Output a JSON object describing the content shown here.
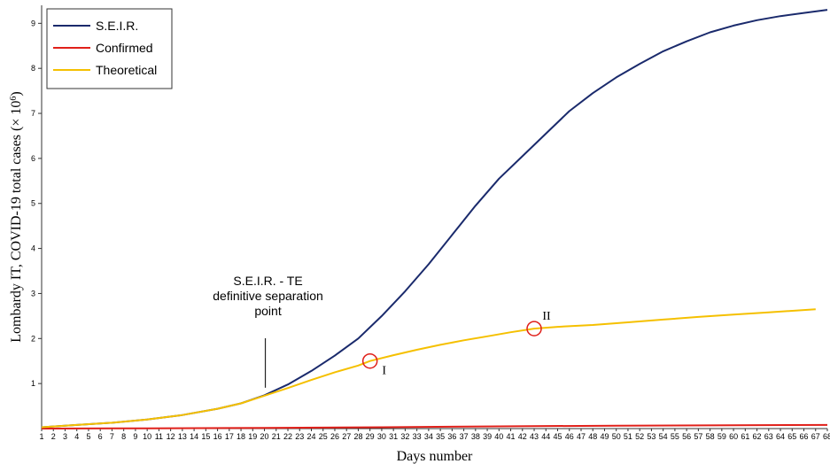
{
  "chart_data": {
    "type": "line",
    "xlabel": "Days number",
    "ylabel_prefix": "Lombardy IT, COVID-19 total cases (× 10",
    "ylabel_exp": "6",
    "ylabel_suffix": ")",
    "x": [
      1,
      2,
      3,
      4,
      5,
      6,
      7,
      8,
      9,
      10,
      11,
      12,
      13,
      14,
      15,
      16,
      17,
      18,
      19,
      20,
      21,
      22,
      23,
      24,
      25,
      26,
      27,
      28,
      29,
      30,
      31,
      32,
      33,
      34,
      35,
      36,
      37,
      38,
      39,
      40,
      41,
      42,
      43,
      44,
      45,
      46,
      47,
      48,
      49,
      50,
      51,
      52,
      53,
      54,
      55,
      56,
      57,
      58,
      59,
      60,
      61,
      62,
      63,
      64,
      65,
      66,
      67,
      68
    ],
    "xlim": [
      1,
      68
    ],
    "ylim": [
      0,
      9.4
    ],
    "yticks": [
      1,
      2,
      3,
      4,
      5,
      6,
      7,
      8,
      9
    ],
    "grid": false,
    "legend_position": "top-left",
    "series": [
      {
        "name": "S.E.I.R.",
        "color": "#1a2a6c",
        "points": [
          [
            1,
            0.03
          ],
          [
            4,
            0.08
          ],
          [
            7,
            0.13
          ],
          [
            10,
            0.2
          ],
          [
            13,
            0.3
          ],
          [
            16,
            0.44
          ],
          [
            18,
            0.56
          ],
          [
            20,
            0.74
          ],
          [
            22,
            0.98
          ],
          [
            24,
            1.28
          ],
          [
            26,
            1.62
          ],
          [
            28,
            2.0
          ],
          [
            30,
            2.5
          ],
          [
            32,
            3.05
          ],
          [
            34,
            3.65
          ],
          [
            36,
            4.3
          ],
          [
            38,
            4.95
          ],
          [
            40,
            5.55
          ],
          [
            42,
            6.05
          ],
          [
            44,
            6.55
          ],
          [
            46,
            7.05
          ],
          [
            48,
            7.45
          ],
          [
            50,
            7.8
          ],
          [
            52,
            8.1
          ],
          [
            54,
            8.38
          ],
          [
            56,
            8.6
          ],
          [
            58,
            8.8
          ],
          [
            60,
            8.95
          ],
          [
            62,
            9.07
          ],
          [
            64,
            9.16
          ],
          [
            66,
            9.23
          ],
          [
            68,
            9.3
          ]
        ]
      },
      {
        "name": "Confirmed",
        "color": "#e0201a",
        "points": [
          [
            1,
            0.0
          ],
          [
            10,
            0.005
          ],
          [
            20,
            0.015
          ],
          [
            30,
            0.03
          ],
          [
            40,
            0.05
          ],
          [
            50,
            0.065
          ],
          [
            60,
            0.075
          ],
          [
            68,
            0.08
          ]
        ]
      },
      {
        "name": "Theoretical",
        "color": "#f5c000",
        "points": [
          [
            1,
            0.03
          ],
          [
            4,
            0.08
          ],
          [
            7,
            0.13
          ],
          [
            10,
            0.2
          ],
          [
            13,
            0.3
          ],
          [
            16,
            0.44
          ],
          [
            18,
            0.56
          ],
          [
            20,
            0.73
          ],
          [
            22,
            0.9
          ],
          [
            24,
            1.08
          ],
          [
            26,
            1.25
          ],
          [
            28,
            1.4
          ],
          [
            29,
            1.5
          ],
          [
            31,
            1.63
          ],
          [
            33,
            1.75
          ],
          [
            35,
            1.86
          ],
          [
            37,
            1.96
          ],
          [
            39,
            2.05
          ],
          [
            41,
            2.14
          ],
          [
            43,
            2.22
          ],
          [
            45,
            2.26
          ],
          [
            48,
            2.3
          ],
          [
            51,
            2.36
          ],
          [
            54,
            2.42
          ],
          [
            57,
            2.48
          ],
          [
            60,
            2.53
          ],
          [
            63,
            2.58
          ],
          [
            67,
            2.65
          ]
        ]
      }
    ],
    "annotations": [
      {
        "lines": [
          "S.E.I.R. - TE",
          "definitive separation",
          "point"
        ],
        "x": 20
      }
    ],
    "markers": [
      {
        "label": "I",
        "x": 29,
        "y": 1.5
      },
      {
        "label": "II",
        "x": 43,
        "y": 2.22
      }
    ]
  }
}
